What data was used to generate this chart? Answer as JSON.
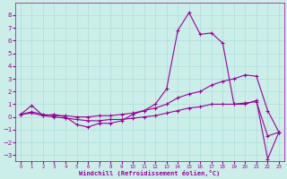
{
  "title": "",
  "xlabel": "Windchill (Refroidissement éolien,°C)",
  "ylabel": "",
  "bg_color": "#cceee8",
  "grid_color": "#aadddd",
  "line_color": "#990099",
  "xlim": [
    -0.5,
    23.5
  ],
  "ylim": [
    -3.5,
    9.0
  ],
  "yticks": [
    -3,
    -2,
    -1,
    0,
    1,
    2,
    3,
    4,
    5,
    6,
    7,
    8
  ],
  "xticks": [
    0,
    1,
    2,
    3,
    4,
    5,
    6,
    7,
    8,
    9,
    10,
    11,
    12,
    13,
    14,
    15,
    16,
    17,
    18,
    19,
    20,
    21,
    22,
    23
  ],
  "lines": [
    {
      "x": [
        0,
        1,
        2,
        3,
        4,
        5,
        6,
        7,
        8,
        9,
        10,
        11,
        12,
        13,
        14,
        15,
        16,
        17,
        18,
        19,
        20,
        21,
        22,
        23
      ],
      "y": [
        0.2,
        0.9,
        0.1,
        0.2,
        0.0,
        -0.6,
        -0.8,
        -0.5,
        -0.5,
        -0.3,
        0.2,
        0.5,
        1.0,
        2.2,
        6.8,
        8.2,
        6.5,
        6.6,
        5.8,
        1.0,
        1.0,
        1.3,
        -3.3,
        -1.2
      ]
    },
    {
      "x": [
        0,
        1,
        2,
        3,
        4,
        5,
        6,
        7,
        8,
        9,
        10,
        11,
        12,
        13,
        14,
        15,
        16,
        17,
        18,
        19,
        20,
        21,
        22,
        23
      ],
      "y": [
        0.2,
        0.4,
        0.2,
        0.1,
        0.1,
        0.0,
        0.0,
        0.1,
        0.1,
        0.2,
        0.3,
        0.5,
        0.7,
        1.0,
        1.5,
        1.8,
        2.0,
        2.5,
        2.8,
        3.0,
        3.3,
        3.2,
        0.5,
        -1.2
      ]
    },
    {
      "x": [
        0,
        1,
        2,
        3,
        4,
        5,
        6,
        7,
        8,
        9,
        10,
        11,
        12,
        13,
        14,
        15,
        16,
        17,
        18,
        19,
        20,
        21,
        22,
        23
      ],
      "y": [
        0.2,
        0.3,
        0.1,
        0.0,
        -0.1,
        -0.2,
        -0.3,
        -0.3,
        -0.2,
        -0.2,
        -0.1,
        0.0,
        0.1,
        0.3,
        0.5,
        0.7,
        0.8,
        1.0,
        1.0,
        1.0,
        1.1,
        1.2,
        -1.5,
        -1.2
      ]
    }
  ]
}
